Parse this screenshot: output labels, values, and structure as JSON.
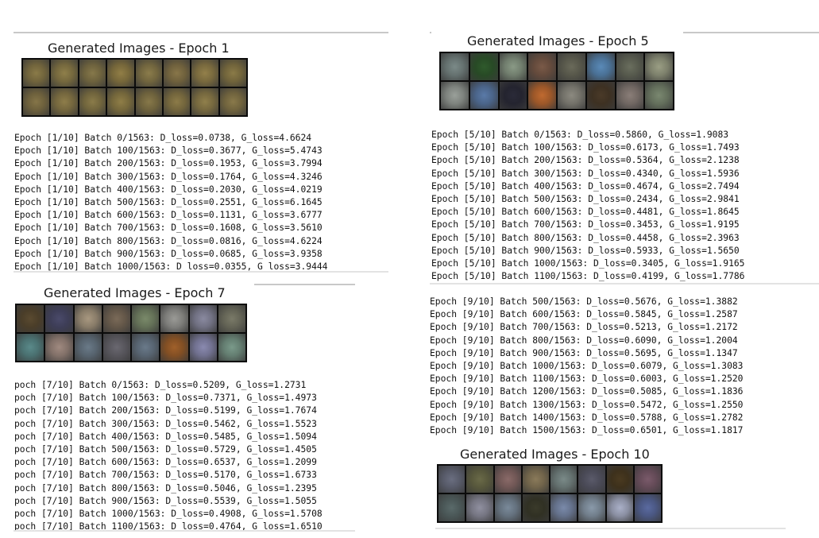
{
  "panels": [
    {
      "title": "Generated Images - Epoch 1",
      "tiles": [
        "#8a7a48",
        "#8f7f4a",
        "#86784a",
        "#917e46",
        "#8b7c4b",
        "#887649",
        "#93804a",
        "#8a7a47",
        "#857548",
        "#8e7d4a",
        "#8a7b49",
        "#8f7e47",
        "#877849",
        "#8c7b48",
        "#907f4b",
        "#89794a"
      ],
      "lines": [
        "Epoch [1/10] Batch 0/1563: D_loss=0.0738, G_loss=4.6624",
        "Epoch [1/10] Batch 100/1563: D_loss=0.3677, G_loss=5.4743",
        "Epoch [1/10] Batch 200/1563: D_loss=0.1953, G_loss=3.7994",
        "Epoch [1/10] Batch 300/1563: D_loss=0.1764, G_loss=4.3246",
        "Epoch [1/10] Batch 400/1563: D_loss=0.2030, G_loss=4.0219",
        "Epoch [1/10] Batch 500/1563: D_loss=0.2551, G_loss=6.1645",
        "Epoch [1/10] Batch 600/1563: D_loss=0.1131, G_loss=3.6777",
        "Epoch [1/10] Batch 700/1563: D_loss=0.1608, G_loss=3.5610",
        "Epoch [1/10] Batch 800/1563: D_loss=0.0816, G_loss=4.6224",
        "Epoch [1/10] Batch 900/1563: D_loss=0.0685, G_loss=3.9358",
        "Epoch [1/10] Batch 1000/1563: D_loss=0.0355, G_loss=3.9444"
      ]
    },
    {
      "title": "Generated Images - Epoch 5",
      "tiles": [
        "#7b8a88",
        "#2f5a2c",
        "#8a9a86",
        "#7a5a48",
        "#6a6a5a",
        "#5a8ab8",
        "#6a6e5e",
        "#9a9e84",
        "#9aa09a",
        "#5a7aa8",
        "#2a2a38",
        "#c06a30",
        "#8c8a80",
        "#4a3a28",
        "#8a7e78",
        "#7a8870"
      ],
      "lines": [
        "Epoch [5/10] Batch 0/1563: D_loss=0.5860, G_loss=1.9083",
        "Epoch [5/10] Batch 100/1563: D_loss=0.6173, G_loss=1.7493",
        "Epoch [5/10] Batch 200/1563: D_loss=0.5364, G_loss=2.1238",
        "Epoch [5/10] Batch 300/1563: D_loss=0.4340, G_loss=1.5936",
        "Epoch [5/10] Batch 400/1563: D_loss=0.4674, G_loss=2.7494",
        "Epoch [5/10] Batch 500/1563: D_loss=0.2434, G_loss=2.9841",
        "Epoch [5/10] Batch 600/1563: D_loss=0.4481, G_loss=1.8645",
        "Epoch [5/10] Batch 700/1563: D_loss=0.3453, G_loss=1.9195",
        "Epoch [5/10] Batch 800/1563: D_loss=0.4458, G_loss=2.3963",
        "Epoch [5/10] Batch 900/1563: D_loss=0.5933, G_loss=1.5650",
        "Epoch [5/10] Batch 1000/1563: D_loss=0.3405, G_loss=1.9165",
        "Epoch [5/10] Batch 1100/1563: D_loss=0.4199, G_loss=1.7786"
      ]
    },
    {
      "title": "Generated Images - Epoch 7",
      "tiles": [
        "#5a4a30",
        "#4a4a6a",
        "#a89880",
        "#7a6a58",
        "#7a8a6a",
        "#9a9a96",
        "#8a8aa0",
        "#7a7a68",
        "#5a8a8a",
        "#a08a80",
        "#6a7a88",
        "#6a6870",
        "#6a7a8a",
        "#a0602a",
        "#8a8ab0",
        "#7a9a8a"
      ],
      "lines": [
        "poch [7/10] Batch 0/1563: D_loss=0.5209, G_loss=1.2731",
        "poch [7/10] Batch 100/1563: D_loss=0.7371, G_loss=1.4973",
        "poch [7/10] Batch 200/1563: D_loss=0.5199, G_loss=1.7674",
        "poch [7/10] Batch 300/1563: D_loss=0.5462, G_loss=1.5523",
        "poch [7/10] Batch 400/1563: D_loss=0.5485, G_loss=1.5094",
        "poch [7/10] Batch 500/1563: D_loss=0.5729, G_loss=1.4505",
        "poch [7/10] Batch 600/1563: D_loss=0.6537, G_loss=1.2099",
        "poch [7/10] Batch 700/1563: D_loss=0.5170, G_loss=1.6733",
        "poch [7/10] Batch 800/1563: D_loss=0.5046, G_loss=1.2395",
        "poch [7/10] Batch 900/1563: D_loss=0.5539, G_loss=1.5055",
        "poch [7/10] Batch 1000/1563: D_loss=0.4908, G_loss=1.5708",
        "poch [7/10] Batch 1100/1563: D_loss=0.4764, G_loss=1.6510"
      ]
    },
    {
      "title": "",
      "tiles": [],
      "lines": [
        "Epoch [9/10] Batch 500/1563: D_loss=0.5676, G_loss=1.3882",
        "Epoch [9/10] Batch 600/1563: D_loss=0.5845, G_loss=1.2587",
        "Epoch [9/10] Batch 700/1563: D_loss=0.5213, G_loss=1.2172",
        "Epoch [9/10] Batch 800/1563: D_loss=0.6090, G_loss=1.2004",
        "Epoch [9/10] Batch 900/1563: D_loss=0.5695, G_loss=1.1347",
        "Epoch [9/10] Batch 1000/1563: D_loss=0.6079, G_loss=1.3083",
        "Epoch [9/10] Batch 1100/1563: D_loss=0.6003, G_loss=1.2520",
        "Epoch [9/10] Batch 1200/1563: D_loss=0.5085, G_loss=1.1836",
        "Epoch [9/10] Batch 1300/1563: D_loss=0.5472, G_loss=1.2550",
        "Epoch [9/10] Batch 1400/1563: D_loss=0.5788, G_loss=1.2782",
        "Epoch [9/10] Batch 1500/1563: D_loss=0.6501, G_loss=1.1817"
      ]
    },
    {
      "title": "Generated Images - Epoch 10",
      "tiles": [
        "#6a6e80",
        "#6a6a48",
        "#8a6a68",
        "#8a7a5a",
        "#7a8a88",
        "#5a5a6a",
        "#4a3a20",
        "#7a5a6a",
        "#5a6a6a",
        "#9090a0",
        "#7a8a9a",
        "#3a3a2a",
        "#7a8aaa",
        "#8a9aaa",
        "#aab0c8",
        "#5a6aa0"
      ],
      "lines": []
    }
  ]
}
